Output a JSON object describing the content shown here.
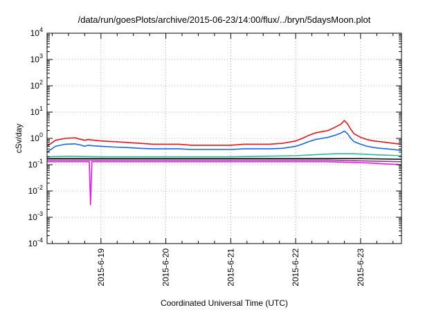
{
  "chart_data": {
    "type": "line",
    "title": "/data/run/goesPlots/archive/2015-06-23/14:00/flux/../bryn/5daysMoon.plot",
    "xlabel": "Coordinated Universal Time (UTC)",
    "ylabel": "cSv/day",
    "yscale": "log",
    "ylim": [
      0.0001,
      10000
    ],
    "xlim": [
      -0.83,
      4.63
    ],
    "x_units": "days relative to 2015-6-19 00:00 UTC",
    "x_tick_labels": [
      "2015-6-19",
      "2015-6-20",
      "2015-6-21",
      "2015-6-22",
      "2015-6-23"
    ],
    "x_tick_values": [
      0,
      1,
      2,
      3,
      4
    ],
    "y_tick_labels": [
      {
        "base": "10",
        "exp": "-4"
      },
      {
        "base": "10",
        "exp": "-3"
      },
      {
        "base": "10",
        "exp": "-2"
      },
      {
        "base": "10",
        "exp": "-1"
      },
      {
        "base": "10",
        "exp": "0"
      },
      {
        "base": "10",
        "exp": "1"
      },
      {
        "base": "10",
        "exp": "2"
      },
      {
        "base": "10",
        "exp": "3"
      },
      {
        "base": "10",
        "exp": "4"
      }
    ],
    "grid": true,
    "legend": "none",
    "series": [
      {
        "color": "#ee1111",
        "x": [
          -0.83,
          -0.7,
          -0.55,
          -0.4,
          -0.3,
          -0.25,
          -0.2,
          -0.1,
          0.0,
          0.2,
          0.4,
          0.6,
          0.8,
          1.0,
          1.2,
          1.4,
          1.6,
          1.8,
          2.0,
          2.2,
          2.4,
          2.6,
          2.8,
          3.0,
          3.1,
          3.2,
          3.3,
          3.4,
          3.5,
          3.6,
          3.7,
          3.75,
          3.8,
          3.85,
          3.9,
          4.0,
          4.1,
          4.2,
          4.3,
          4.4,
          4.5,
          4.63
        ],
        "y": [
          0.5,
          0.85,
          1.0,
          1.05,
          0.9,
          0.85,
          0.9,
          0.85,
          0.8,
          0.75,
          0.7,
          0.65,
          0.6,
          0.6,
          0.6,
          0.55,
          0.55,
          0.55,
          0.55,
          0.6,
          0.6,
          0.6,
          0.65,
          0.8,
          1.0,
          1.3,
          1.6,
          1.8,
          2.0,
          2.6,
          3.5,
          4.8,
          3.5,
          2.2,
          1.5,
          1.1,
          0.9,
          0.8,
          0.75,
          0.7,
          0.65,
          0.6
        ]
      },
      {
        "color": "#1166ee",
        "x": [
          -0.83,
          -0.7,
          -0.55,
          -0.4,
          -0.3,
          -0.25,
          -0.2,
          -0.1,
          0.0,
          0.2,
          0.4,
          0.6,
          0.8,
          1.0,
          1.2,
          1.4,
          1.6,
          1.8,
          2.0,
          2.2,
          2.4,
          2.6,
          2.8,
          3.0,
          3.1,
          3.2,
          3.3,
          3.4,
          3.5,
          3.6,
          3.7,
          3.75,
          3.8,
          3.85,
          3.9,
          4.0,
          4.1,
          4.2,
          4.3,
          4.4,
          4.5,
          4.63
        ],
        "y": [
          0.3,
          0.5,
          0.6,
          0.62,
          0.55,
          0.5,
          0.55,
          0.52,
          0.5,
          0.47,
          0.45,
          0.42,
          0.4,
          0.4,
          0.4,
          0.38,
          0.38,
          0.38,
          0.38,
          0.4,
          0.4,
          0.4,
          0.42,
          0.5,
          0.6,
          0.75,
          0.9,
          1.0,
          1.1,
          1.3,
          1.6,
          1.9,
          1.5,
          1.0,
          0.75,
          0.6,
          0.5,
          0.45,
          0.42,
          0.4,
          0.38,
          0.35
        ]
      },
      {
        "color": "#22bb99",
        "x": [
          -0.83,
          -0.5,
          0.0,
          0.5,
          1.0,
          1.5,
          2.0,
          2.5,
          3.0,
          3.3,
          3.6,
          3.9,
          4.2,
          4.63
        ],
        "y": [
          0.2,
          0.21,
          0.2,
          0.2,
          0.2,
          0.2,
          0.2,
          0.21,
          0.22,
          0.24,
          0.26,
          0.26,
          0.24,
          0.22
        ]
      },
      {
        "color": "#111111",
        "x": [
          -0.83,
          -0.5,
          0.0,
          0.5,
          1.0,
          1.5,
          2.0,
          2.5,
          3.0,
          3.5,
          4.0,
          4.63
        ],
        "y": [
          0.17,
          0.17,
          0.17,
          0.17,
          0.17,
          0.17,
          0.17,
          0.17,
          0.17,
          0.17,
          0.17,
          0.16
        ]
      },
      {
        "color": "#993399",
        "x": [
          -0.83,
          -0.5,
          0.0,
          0.5,
          1.0,
          1.5,
          2.0,
          2.5,
          3.0,
          3.5,
          4.0,
          4.63
        ],
        "y": [
          0.15,
          0.15,
          0.15,
          0.15,
          0.15,
          0.15,
          0.15,
          0.15,
          0.15,
          0.15,
          0.14,
          0.13
        ]
      },
      {
        "color": "#ee11ee",
        "x": [
          -0.83,
          -0.5,
          -0.3,
          -0.18,
          -0.17,
          -0.16,
          -0.15,
          -0.14,
          -0.1,
          0.0,
          0.5,
          1.0,
          1.5,
          2.0,
          2.5,
          3.0,
          3.5,
          4.0,
          4.3,
          4.63
        ],
        "y": [
          0.13,
          0.13,
          0.13,
          0.13,
          0.02,
          0.003,
          0.02,
          0.13,
          0.13,
          0.13,
          0.13,
          0.13,
          0.13,
          0.13,
          0.13,
          0.13,
          0.13,
          0.12,
          0.11,
          0.1
        ]
      }
    ]
  }
}
